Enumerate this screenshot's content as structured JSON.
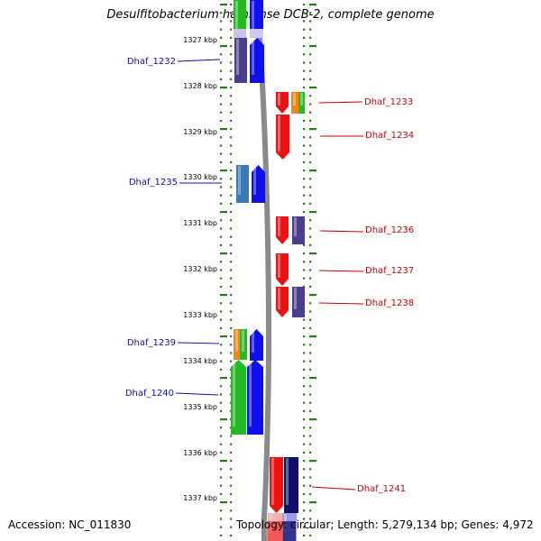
{
  "title": "Desulfitobacterium hafniense DCB-2, complete genome",
  "footer": {
    "accession": "Accession: NC_011830",
    "topology": "Topology: circular; Length: 5,279,134 bp; Genes: 4,972"
  },
  "colors": {
    "tick": "#2a7a1a",
    "backbone": "#8a8a8a",
    "left_label": "#1010b0",
    "right_label": "#cc0000",
    "red": "#ee1111",
    "blue": "#1010ee",
    "navy": "#10106a",
    "green": "#22bb22",
    "orange": "#ee8811",
    "purple": "#4a3f8f",
    "steel": "#3a7ab8",
    "ghost_red": "#f5b0b0",
    "ghost_green": "#9ad89a",
    "ghost_blue": "#9a9ae8"
  },
  "positions_kbp": [
    "1327 kbp",
    "1328 kbp",
    "1329 kbp",
    "1330 kbp",
    "1331 kbp",
    "1332 kbp",
    "1333 kbp",
    "1334 kbp",
    "1335 kbp",
    "1336 kbp",
    "1337 kbp"
  ],
  "gene_labels": {
    "left": [
      "Dhaf_1232",
      "Dhaf_1235",
      "Dhaf_1239",
      "Dhaf_1240"
    ],
    "right": [
      "Dhaf_1233",
      "Dhaf_1234",
      "Dhaf_1236",
      "Dhaf_1237",
      "Dhaf_1238",
      "Dhaf_1241"
    ]
  }
}
